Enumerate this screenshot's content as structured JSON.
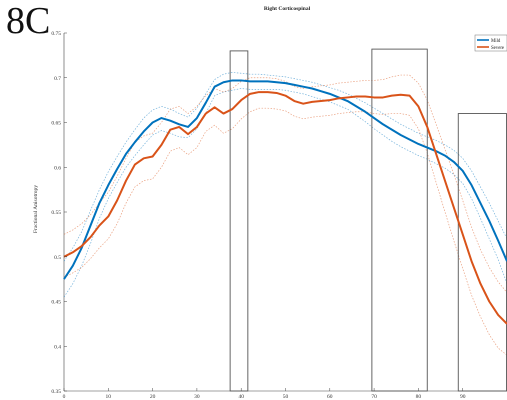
{
  "panel_label": "8C",
  "chart_data": {
    "type": "line",
    "title": "Right Corticospinal",
    "xlabel": "",
    "ylabel": "Fractional Anisotropy",
    "xlim": [
      0,
      100
    ],
    "ylim": [
      0.35,
      0.75
    ],
    "xticks": [
      0,
      10,
      20,
      30,
      40,
      50,
      60,
      70,
      80,
      90
    ],
    "yticks": [
      0.35,
      0.4,
      0.45,
      0.5,
      0.55,
      0.6,
      0.65,
      0.7,
      0.75
    ],
    "legend_position": "top-right",
    "colors": {
      "mild": "#0072BD",
      "severe": "#D95319",
      "box": "#555555"
    },
    "x": [
      0,
      2,
      4,
      6,
      8,
      10,
      12,
      14,
      16,
      18,
      20,
      22,
      24,
      26,
      28,
      30,
      32,
      34,
      36,
      38,
      40,
      42,
      44,
      46,
      48,
      50,
      52,
      54,
      56,
      58,
      60,
      62,
      64,
      66,
      68,
      70,
      72,
      74,
      76,
      78,
      80,
      82,
      84,
      86,
      88,
      90,
      92,
      94,
      96,
      98,
      100
    ],
    "series": [
      {
        "name": "Mild",
        "color": "#0072BD",
        "values": [
          0.475,
          0.49,
          0.51,
          0.535,
          0.56,
          0.58,
          0.598,
          0.615,
          0.628,
          0.64,
          0.65,
          0.655,
          0.652,
          0.648,
          0.645,
          0.655,
          0.672,
          0.69,
          0.695,
          0.697,
          0.697,
          0.696,
          0.696,
          0.696,
          0.695,
          0.694,
          0.692,
          0.69,
          0.688,
          0.685,
          0.682,
          0.678,
          0.674,
          0.668,
          0.662,
          0.655,
          0.648,
          0.642,
          0.636,
          0.631,
          0.626,
          0.622,
          0.618,
          0.613,
          0.606,
          0.596,
          0.58,
          0.56,
          0.54,
          0.518,
          0.495
        ],
        "upper": [
          0.495,
          0.51,
          0.528,
          0.552,
          0.575,
          0.595,
          0.612,
          0.628,
          0.642,
          0.655,
          0.664,
          0.668,
          0.665,
          0.66,
          0.656,
          0.666,
          0.682,
          0.698,
          0.704,
          0.706,
          0.705,
          0.704,
          0.704,
          0.703,
          0.702,
          0.701,
          0.699,
          0.697,
          0.695,
          0.692,
          0.689,
          0.686,
          0.682,
          0.677,
          0.672,
          0.666,
          0.66,
          0.654,
          0.648,
          0.643,
          0.638,
          0.634,
          0.63,
          0.625,
          0.619,
          0.61,
          0.596,
          0.578,
          0.56,
          0.54,
          0.52
        ],
        "lower": [
          0.455,
          0.47,
          0.49,
          0.515,
          0.543,
          0.565,
          0.583,
          0.6,
          0.613,
          0.625,
          0.636,
          0.641,
          0.638,
          0.634,
          0.633,
          0.643,
          0.66,
          0.68,
          0.684,
          0.686,
          0.688,
          0.687,
          0.687,
          0.687,
          0.687,
          0.686,
          0.684,
          0.682,
          0.679,
          0.676,
          0.673,
          0.669,
          0.665,
          0.658,
          0.651,
          0.643,
          0.636,
          0.629,
          0.623,
          0.618,
          0.613,
          0.609,
          0.604,
          0.599,
          0.592,
          0.582,
          0.565,
          0.543,
          0.52,
          0.497,
          0.47
        ]
      },
      {
        "name": "Severe",
        "color": "#D95319",
        "values": [
          0.5,
          0.505,
          0.512,
          0.522,
          0.535,
          0.545,
          0.563,
          0.585,
          0.603,
          0.61,
          0.612,
          0.625,
          0.642,
          0.645,
          0.637,
          0.645,
          0.66,
          0.667,
          0.66,
          0.665,
          0.675,
          0.682,
          0.684,
          0.684,
          0.683,
          0.68,
          0.674,
          0.671,
          0.673,
          0.674,
          0.675,
          0.677,
          0.678,
          0.679,
          0.679,
          0.678,
          0.678,
          0.68,
          0.681,
          0.68,
          0.668,
          0.645,
          0.615,
          0.585,
          0.555,
          0.525,
          0.495,
          0.47,
          0.45,
          0.435,
          0.425
        ],
        "upper": [
          0.525,
          0.53,
          0.537,
          0.547,
          0.56,
          0.572,
          0.59,
          0.61,
          0.628,
          0.635,
          0.638,
          0.65,
          0.665,
          0.668,
          0.66,
          0.668,
          0.68,
          0.688,
          0.684,
          0.688,
          0.696,
          0.7,
          0.7,
          0.7,
          0.699,
          0.696,
          0.69,
          0.688,
          0.69,
          0.691,
          0.692,
          0.694,
          0.695,
          0.696,
          0.697,
          0.697,
          0.698,
          0.701,
          0.703,
          0.703,
          0.694,
          0.675,
          0.648,
          0.62,
          0.592,
          0.563,
          0.533,
          0.508,
          0.488,
          0.472,
          0.46
        ],
        "lower": [
          0.477,
          0.482,
          0.488,
          0.498,
          0.51,
          0.52,
          0.537,
          0.56,
          0.578,
          0.585,
          0.587,
          0.6,
          0.618,
          0.622,
          0.614,
          0.622,
          0.64,
          0.647,
          0.638,
          0.643,
          0.654,
          0.662,
          0.666,
          0.666,
          0.665,
          0.663,
          0.657,
          0.654,
          0.656,
          0.657,
          0.658,
          0.66,
          0.661,
          0.662,
          0.662,
          0.66,
          0.659,
          0.66,
          0.66,
          0.658,
          0.643,
          0.616,
          0.583,
          0.55,
          0.518,
          0.487,
          0.457,
          0.433,
          0.413,
          0.398,
          0.39
        ]
      }
    ],
    "highlight_boxes": [
      {
        "x0": 37.5,
        "x1": 41.5,
        "y_top": 0.73
      },
      {
        "x0": 69.5,
        "x1": 82.0,
        "y_top": 0.732
      },
      {
        "x0": 89.0,
        "x1": 100.0,
        "y_top": 0.66
      }
    ]
  }
}
